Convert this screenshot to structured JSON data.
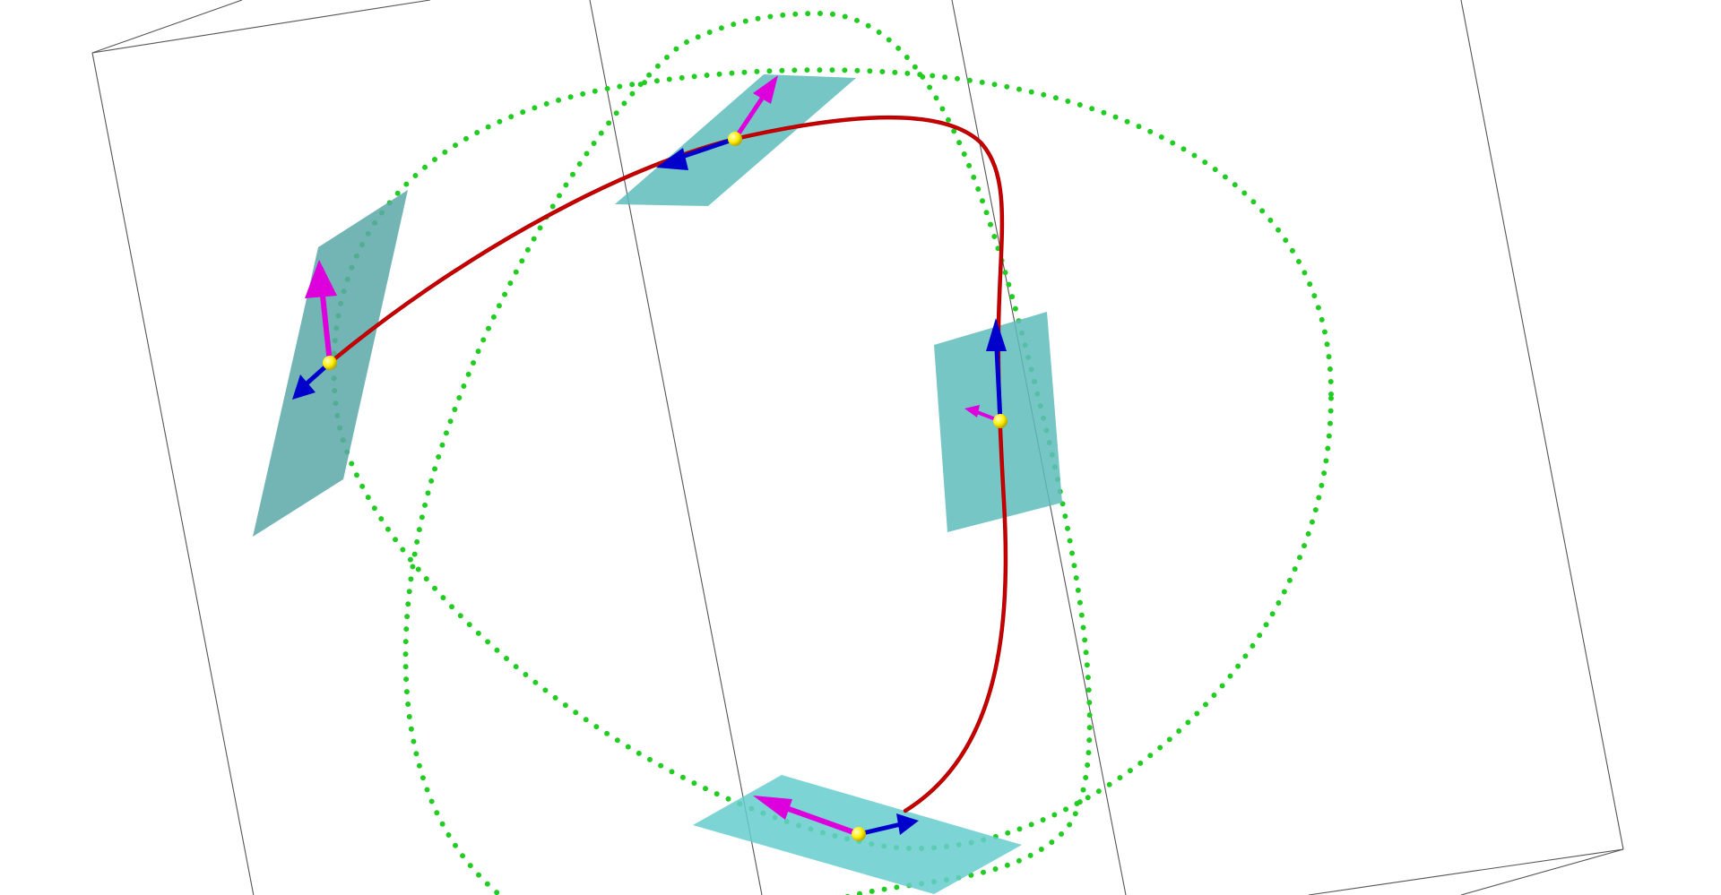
{
  "scene": {
    "description_free": true,
    "background_color": "#ffffff",
    "colors": {
      "box_edge": "#444444",
      "curve": "#b30000",
      "curve_highlight": "#e00000",
      "projection_dots": "#22cc22",
      "normal_plane": "#5fbcbc",
      "tangent_arrow": "#0000cc",
      "normal_arrow": "#dd00dd",
      "point_marker": "#ffee00"
    },
    "icons": {
      "frame_point": "sphere-marker-icon",
      "tangent": "arrow-icon",
      "normal": "arrow-icon"
    }
  }
}
